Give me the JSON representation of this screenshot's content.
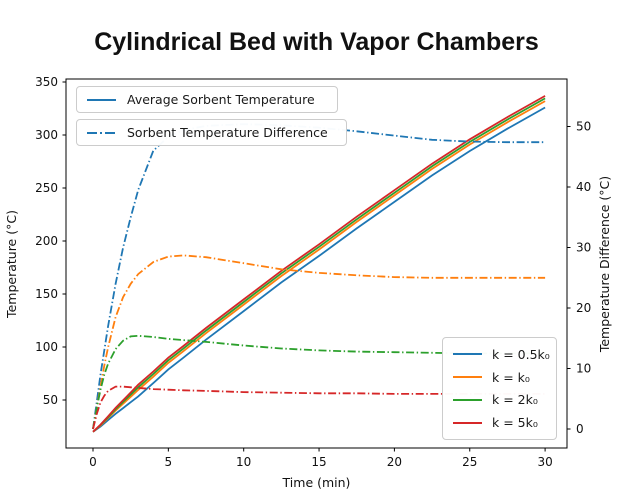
{
  "chart_data": {
    "type": "line",
    "title": "Cylindrical Bed with Vapor Chambers",
    "xlabel": "Time (min)",
    "ylabel_left": "Temperature (°C)",
    "ylabel_right": "Temperature Difference (°C)",
    "x_ticks": [
      0,
      5,
      10,
      15,
      20,
      25,
      30
    ],
    "y_left_ticks": [
      350,
      300,
      250,
      200,
      150,
      100,
      50
    ],
    "y_right_ticks": [
      50,
      40,
      30,
      20,
      10,
      0
    ],
    "xlim": [
      -1.8,
      31.5
    ],
    "ylim_left": [
      4.7,
      352.8
    ],
    "ylim_right": [
      -3.2,
      57.9
    ],
    "grid": false,
    "colors": {
      "blue": "#1f77b4",
      "orange": "#ff7f0e",
      "green": "#2ca02c",
      "red": "#d62728"
    },
    "t": [
      0,
      0.25,
      0.5,
      0.75,
      1,
      1.5,
      2,
      2.5,
      3,
      4,
      5,
      6,
      7.5,
      10,
      12.5,
      15,
      17.5,
      20,
      22.5,
      25,
      27.5,
      30
    ],
    "series": [
      {
        "name": "temp-k0p5",
        "label": "k = 0.5k₀",
        "axis": "left",
        "style": "solid",
        "color": "#1f77b4",
        "values": [
          20,
          22.5,
          25.0,
          28.0,
          31.0,
          37.0,
          42.4,
          47.9,
          53.4,
          65.9,
          78.9,
          89.9,
          106.9,
          133.9,
          160.9,
          185.9,
          211.9,
          236.9,
          261.9,
          284.9,
          305.9,
          325.9
        ]
      },
      {
        "name": "temp-k1",
        "label": "k = k₀",
        "axis": "left",
        "style": "solid",
        "color": "#ff7f0e",
        "values": [
          20,
          23.0,
          26.0,
          29.5,
          33.0,
          40.0,
          46.5,
          53.0,
          59.5,
          72.0,
          85.0,
          96.0,
          113.0,
          140.0,
          167.0,
          192.0,
          218.0,
          243.0,
          268.0,
          291.0,
          312.0,
          332.0
        ]
      },
      {
        "name": "temp-k2",
        "label": "k = 2k₀",
        "axis": "left",
        "style": "solid",
        "color": "#2ca02c",
        "values": [
          20,
          23.2,
          26.4,
          30.1,
          33.8,
          41.3,
          48.2,
          55.1,
          62.0,
          74.5,
          87.5,
          98.5,
          115.5,
          142.5,
          169.5,
          194.5,
          220.5,
          245.5,
          270.5,
          293.5,
          314.5,
          334.5
        ]
      },
      {
        "name": "temp-k5",
        "label": "k = 5k₀",
        "axis": "left",
        "style": "solid",
        "color": "#d62728",
        "values": [
          20,
          23.4,
          26.8,
          30.7,
          34.6,
          42.5,
          49.8,
          57.1,
          64.4,
          76.9,
          89.9,
          100.9,
          117.9,
          144.9,
          171.9,
          196.9,
          222.9,
          247.9,
          272.9,
          295.9,
          316.9,
          336.9
        ]
      },
      {
        "name": "diff-k0p5",
        "label": "k = 0.5k₀",
        "axis": "right",
        "style": "dashdot",
        "color": "#1f77b4",
        "values": [
          0,
          4.5,
          9.0,
          13.0,
          17.0,
          24.0,
          30.0,
          35.0,
          39.5,
          46.0,
          48.3,
          49.4,
          50.1,
          50.4,
          50.2,
          49.8,
          49.2,
          48.5,
          47.8,
          47.5,
          47.4,
          47.4
        ]
      },
      {
        "name": "diff-k1",
        "label": "k = k₀",
        "axis": "right",
        "style": "dashdot",
        "color": "#ff7f0e",
        "values": [
          0,
          3.5,
          7.0,
          10.5,
          13.5,
          18.5,
          21.8,
          24.0,
          25.6,
          27.6,
          28.5,
          28.7,
          28.4,
          27.4,
          26.4,
          25.8,
          25.4,
          25.1,
          25.0,
          25.0,
          25.0,
          25.0
        ]
      },
      {
        "name": "diff-k2",
        "label": "k = 2k₀",
        "axis": "right",
        "style": "dashdot",
        "color": "#2ca02c",
        "values": [
          0,
          3.5,
          6.5,
          9.0,
          10.8,
          13.2,
          14.6,
          15.3,
          15.4,
          15.2,
          14.9,
          14.7,
          14.4,
          13.8,
          13.3,
          13.0,
          12.8,
          12.7,
          12.6,
          12.5,
          12.5,
          12.5
        ]
      },
      {
        "name": "diff-k5",
        "label": "k = 5k₀",
        "axis": "right",
        "style": "dashdot",
        "color": "#d62728",
        "values": [
          0,
          2.5,
          4.4,
          5.5,
          6.3,
          7.0,
          7.0,
          6.9,
          6.8,
          6.6,
          6.5,
          6.4,
          6.3,
          6.1,
          6.0,
          5.9,
          5.9,
          5.8,
          5.8,
          5.8,
          5.8,
          5.8
        ]
      }
    ],
    "legend_top": [
      {
        "label": "Average Sorbent Temperature",
        "style": "solid",
        "color": "#1f77b4"
      },
      {
        "label": "Sorbent Temperature Difference",
        "style": "dashdot",
        "color": "#1f77b4"
      }
    ],
    "legend_k": [
      {
        "label": "k = 0.5k₀",
        "color": "#1f77b4"
      },
      {
        "label": "k = k₀",
        "color": "#ff7f0e"
      },
      {
        "label": "k = 2k₀",
        "color": "#2ca02c"
      },
      {
        "label": "k = 5k₀",
        "color": "#d62728"
      }
    ]
  }
}
